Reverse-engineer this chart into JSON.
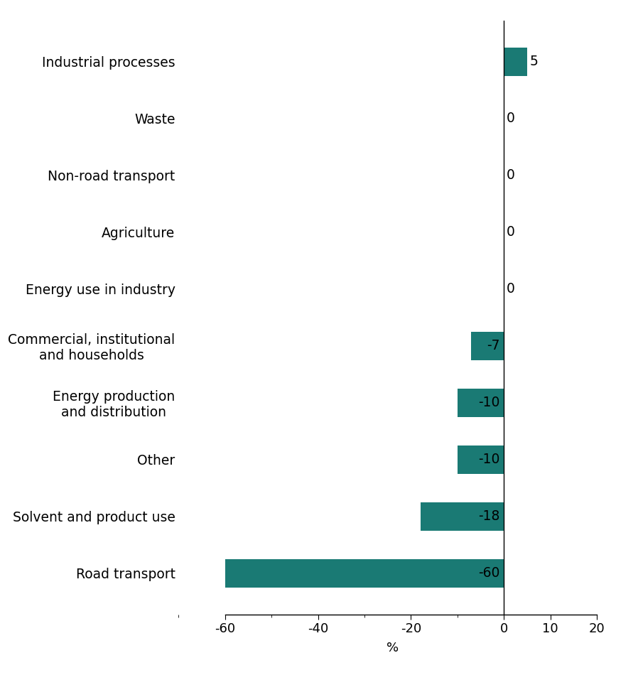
{
  "categories": [
    "Industrial processes",
    "Waste",
    "Non-road transport",
    "Agriculture",
    "Energy use in industry",
    "Commercial, institutional\nand households",
    "Energy production\nand distribution",
    "Other",
    "Solvent and product use",
    "Road transport"
  ],
  "values": [
    5,
    0,
    0,
    0,
    0,
    -7,
    -10,
    -10,
    -18,
    -60
  ],
  "bar_color": "#1a7a74",
  "xlabel": "%",
  "xlim": [
    -70,
    22
  ],
  "xticks": [
    -60,
    -40,
    -20,
    0,
    10,
    20
  ],
  "xtick_labels": [
    "-60",
    "-40",
    "-20",
    "0",
    "10",
    "20"
  ],
  "background_color": "#ffffff",
  "label_fontsize": 13.5,
  "tick_fontsize": 13,
  "xlabel_fontsize": 13,
  "value_labels": [
    "5",
    "0",
    "0",
    "0",
    "0",
    "-7",
    "-10",
    "-10",
    "-18",
    "-60"
  ],
  "bar_height": 0.5
}
